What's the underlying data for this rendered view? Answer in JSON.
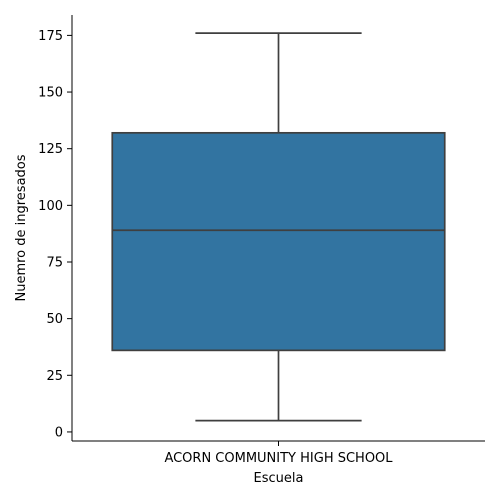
{
  "chart_data": {
    "type": "box",
    "categories": [
      "ACORN COMMUNITY HIGH SCHOOL"
    ],
    "series": [
      {
        "stats": {
          "whisker_low": 5,
          "q1": 36,
          "median": 89,
          "q3": 132,
          "whisker_high": 176
        }
      }
    ],
    "xlabel": "Escuela",
    "ylabel": "Nuemro de ingresados",
    "ylim": [
      -4,
      184
    ],
    "yticks": [
      0,
      25,
      50,
      75,
      100,
      125,
      150,
      175
    ],
    "grid": false,
    "box_color": "#3274a1",
    "line_color": "#3f3f3f"
  }
}
